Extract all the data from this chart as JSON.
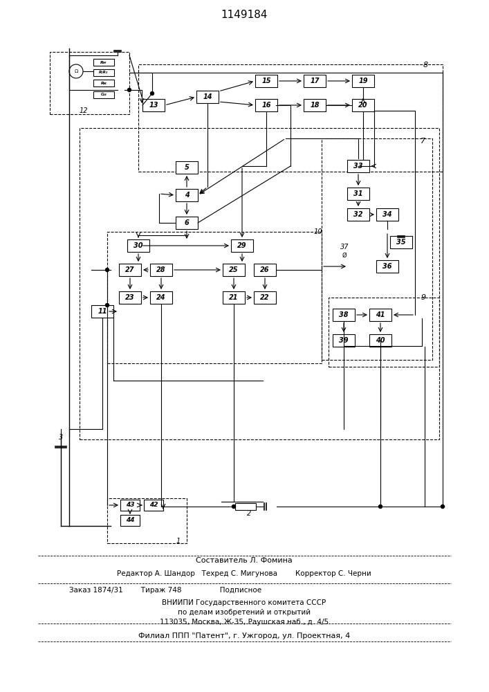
{
  "title": "1149184",
  "title_fontsize": 11,
  "bg_color": "#ffffff",
  "line_color": "#000000",
  "box_color": "#ffffff",
  "box_edge": "#000000",
  "text_color": "#000000",
  "footer_lines": [
    "Составитель Л. Фомина",
    "Редактор А. Шандор   Техред С. Мигунова        Корректор С. Черни",
    "Заказ 1874/31        Тираж 748                 Подписное",
    "ВНИИПИ Государственного комитета СССР",
    "по делам изобретений и открытий",
    "113035, Москва, Ж-35, Раушская наб., д. 4/5",
    "Филиал ППП \"Патент\", г. Ужгород, ул. Проектная, 4"
  ]
}
